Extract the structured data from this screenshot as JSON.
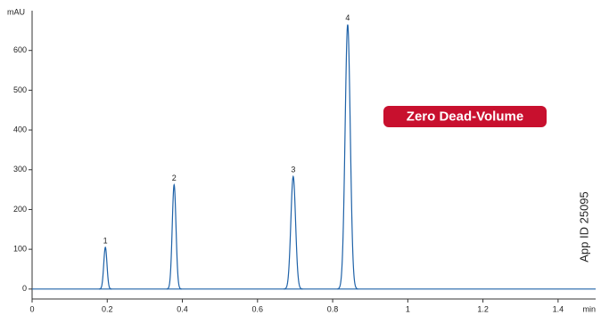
{
  "chart_data": {
    "type": "chromatogram",
    "y_unit": "mAU",
    "x_unit": "min",
    "annotation": "Zero Dead-Volume",
    "side_note": "App ID 25095",
    "color": "#1f62a8",
    "peak_labels": [
      "1",
      "2",
      "3",
      "4"
    ],
    "x": [
      0.195,
      0.378,
      0.695,
      0.84
    ],
    "values": [
      105,
      262,
      283,
      665
    ],
    "xlim": [
      0,
      1.5
    ],
    "ylim": [
      -25,
      700
    ],
    "xticks": [
      0,
      0.2,
      0.4,
      0.6,
      0.8,
      1,
      1.2,
      1.4
    ],
    "yticks": [
      0,
      100,
      200,
      300,
      400,
      500,
      600
    ]
  }
}
